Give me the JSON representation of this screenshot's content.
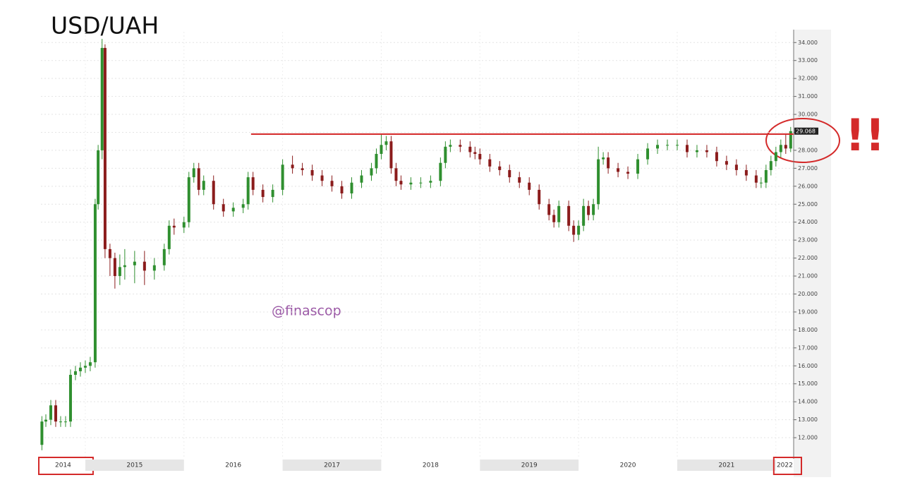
{
  "chart_data": {
    "type": "candlestick",
    "title": "USD/UAH",
    "watermark": "@finascop",
    "annotation": "!!",
    "x": [
      2014.56,
      2014.6,
      2014.65,
      2014.7,
      2014.75,
      2014.8,
      2014.85,
      2014.9,
      2014.95,
      2015.0,
      2015.05,
      2015.1,
      2015.13,
      2015.17,
      2015.2,
      2015.25,
      2015.3,
      2015.35,
      2015.4,
      2015.5,
      2015.6,
      2015.7,
      2015.8,
      2015.85,
      2015.9,
      2016.0,
      2016.05,
      2016.1,
      2016.15,
      2016.2,
      2016.3,
      2016.4,
      2016.5,
      2016.6,
      2016.65,
      2016.7,
      2016.8,
      2016.9,
      2017.0,
      2017.1,
      2017.2,
      2017.3,
      2017.4,
      2017.5,
      2017.6,
      2017.7,
      2017.8,
      2017.9,
      2017.95,
      2018.0,
      2018.05,
      2018.1,
      2018.15,
      2018.2,
      2018.3,
      2018.4,
      2018.5,
      2018.6,
      2018.65,
      2018.7,
      2018.8,
      2018.9,
      2018.95,
      2019.0,
      2019.1,
      2019.2,
      2019.3,
      2019.4,
      2019.5,
      2019.6,
      2019.7,
      2019.75,
      2019.8,
      2019.9,
      2019.95,
      2020.0,
      2020.05,
      2020.1,
      2020.15,
      2020.2,
      2020.25,
      2020.3,
      2020.4,
      2020.5,
      2020.6,
      2020.7,
      2020.8,
      2020.9,
      2021.0,
      2021.1,
      2021.2,
      2021.3,
      2021.4,
      2021.5,
      2021.6,
      2021.7,
      2021.8,
      2021.85,
      2021.9,
      2021.95,
      2022.0,
      2022.05,
      2022.1,
      2022.15
    ],
    "open": [
      11.6,
      12.9,
      13.0,
      13.8,
      12.9,
      12.9,
      12.9,
      15.5,
      15.7,
      15.9,
      16.0,
      16.2,
      25.0,
      28.0,
      33.7,
      22.5,
      22.0,
      21.0,
      21.5,
      21.6,
      21.8,
      21.3,
      21.6,
      22.5,
      23.8,
      23.7,
      24.0,
      26.5,
      27.0,
      25.8,
      26.3,
      25.0,
      24.6,
      24.8,
      25.0,
      26.5,
      25.8,
      25.4,
      25.8,
      27.2,
      27.0,
      26.9,
      26.6,
      26.3,
      26.0,
      25.6,
      26.2,
      26.6,
      27.0,
      27.8,
      28.3,
      28.5,
      27.0,
      26.3,
      26.1,
      26.2,
      26.2,
      26.3,
      27.3,
      28.2,
      28.3,
      28.2,
      27.9,
      27.8,
      27.5,
      27.1,
      26.9,
      26.5,
      26.2,
      25.8,
      25.0,
      24.4,
      24.0,
      24.9,
      23.8,
      23.3,
      23.8,
      24.9,
      24.4,
      25.0,
      27.5,
      27.6,
      27.0,
      26.8,
      26.7,
      27.5,
      28.1,
      28.3,
      28.3,
      28.3,
      27.9,
      28.0,
      27.9,
      27.4,
      27.2,
      26.9,
      26.6,
      26.2,
      26.2,
      26.9,
      27.4,
      27.9,
      28.3,
      28.1
    ],
    "high": [
      13.2,
      13.3,
      14.1,
      14.1,
      13.2,
      13.2,
      15.8,
      16.0,
      16.2,
      16.3,
      16.5,
      25.3,
      28.3,
      34.2,
      33.9,
      22.8,
      22.3,
      22.2,
      22.5,
      22.4,
      22.4,
      22.0,
      22.8,
      24.1,
      24.2,
      24.3,
      26.8,
      27.3,
      27.3,
      26.6,
      26.6,
      25.3,
      25.1,
      25.3,
      26.8,
      26.8,
      26.1,
      26.1,
      27.5,
      27.7,
      27.3,
      27.2,
      26.9,
      26.6,
      26.3,
      26.5,
      26.9,
      27.3,
      28.1,
      28.9,
      28.8,
      28.8,
      27.3,
      26.6,
      26.5,
      26.5,
      26.6,
      27.6,
      28.5,
      28.6,
      28.6,
      28.5,
      28.2,
      28.1,
      27.8,
      27.4,
      27.2,
      26.8,
      26.5,
      26.1,
      25.3,
      24.7,
      25.2,
      25.2,
      24.1,
      24.1,
      25.3,
      25.2,
      25.3,
      28.2,
      27.9,
      27.9,
      27.3,
      27.1,
      27.8,
      28.4,
      28.6,
      28.6,
      28.6,
      28.6,
      28.3,
      28.3,
      28.2,
      27.7,
      27.5,
      27.2,
      26.9,
      26.5,
      27.2,
      27.7,
      28.2,
      28.6,
      28.9,
      29.3
    ],
    "low": [
      11.3,
      12.6,
      12.7,
      12.6,
      12.6,
      12.6,
      12.6,
      15.2,
      15.4,
      15.6,
      15.7,
      15.9,
      24.7,
      27.5,
      22.0,
      21.0,
      20.3,
      20.5,
      20.8,
      20.6,
      20.5,
      20.8,
      21.3,
      22.2,
      23.3,
      23.4,
      23.7,
      26.2,
      25.5,
      25.5,
      24.7,
      24.3,
      24.3,
      24.5,
      24.7,
      25.5,
      25.1,
      25.1,
      25.5,
      26.7,
      26.6,
      26.3,
      26.0,
      25.7,
      25.3,
      25.3,
      25.9,
      26.3,
      26.7,
      27.5,
      28.0,
      26.7,
      26.0,
      25.8,
      25.8,
      25.9,
      25.9,
      26.0,
      27.0,
      27.9,
      27.9,
      27.6,
      27.5,
      27.2,
      26.8,
      26.6,
      26.2,
      25.9,
      25.5,
      24.7,
      24.1,
      23.7,
      23.7,
      23.5,
      22.9,
      23.0,
      23.5,
      24.1,
      24.1,
      24.7,
      27.2,
      26.7,
      26.5,
      26.4,
      26.4,
      27.2,
      27.8,
      28.0,
      28.0,
      27.6,
      27.6,
      27.6,
      27.1,
      26.9,
      26.6,
      26.3,
      25.9,
      25.9,
      25.9,
      26.6,
      27.1,
      27.6,
      27.8,
      27.9
    ],
    "close": [
      12.9,
      13.0,
      13.8,
      12.9,
      12.9,
      12.9,
      15.5,
      15.7,
      15.9,
      16.0,
      16.2,
      25.0,
      28.0,
      33.7,
      22.5,
      22.0,
      21.0,
      21.5,
      21.6,
      21.8,
      21.3,
      21.6,
      22.5,
      23.8,
      23.7,
      24.0,
      26.5,
      27.0,
      25.8,
      26.3,
      25.0,
      24.6,
      24.8,
      25.0,
      26.5,
      25.8,
      25.4,
      25.8,
      27.2,
      27.0,
      26.9,
      26.6,
      26.3,
      26.0,
      25.6,
      26.2,
      26.6,
      27.0,
      27.8,
      28.3,
      28.5,
      27.0,
      26.3,
      26.1,
      26.2,
      26.2,
      26.3,
      27.3,
      28.2,
      28.3,
      28.2,
      27.9,
      27.8,
      27.5,
      27.1,
      26.9,
      26.5,
      26.2,
      25.8,
      25.0,
      24.4,
      24.0,
      24.9,
      23.8,
      23.3,
      23.8,
      24.9,
      24.4,
      25.0,
      27.5,
      27.6,
      27.0,
      26.8,
      26.7,
      27.5,
      28.1,
      28.3,
      28.3,
      28.3,
      27.9,
      28.0,
      27.9,
      27.4,
      27.2,
      26.9,
      26.6,
      26.2,
      26.2,
      26.9,
      27.4,
      27.9,
      28.3,
      28.1,
      29.068
    ],
    "up_color": "#2f8f2f",
    "down_color": "#8b1c1c",
    "xlim": [
      2014.55,
      2022.18
    ],
    "xticks": [
      2014,
      2015,
      2016,
      2017,
      2018,
      2019,
      2020,
      2021,
      2022
    ],
    "highlighted_xticks": [
      2014,
      2022
    ],
    "ylim": [
      11,
      34.6
    ],
    "yticks": [
      {
        "value": 12,
        "label": "12.000"
      },
      {
        "value": 13,
        "label": "13.000"
      },
      {
        "value": 14,
        "label": "14.000"
      },
      {
        "value": 15,
        "label": "15.000"
      },
      {
        "value": 16,
        "label": "16.000"
      },
      {
        "value": 17,
        "label": "17.000"
      },
      {
        "value": 18,
        "label": "18.000"
      },
      {
        "value": 19,
        "label": "19.000"
      },
      {
        "value": 20,
        "label": "20.000"
      },
      {
        "value": 21,
        "label": "21.000"
      },
      {
        "value": 22,
        "label": "22.000"
      },
      {
        "value": 23,
        "label": "23.000"
      },
      {
        "value": 24,
        "label": "24.000"
      },
      {
        "value": 25,
        "label": "25.000"
      },
      {
        "value": 26,
        "label": "26.000"
      },
      {
        "value": 27,
        "label": "27.000"
      },
      {
        "value": 28,
        "label": "28.000"
      },
      {
        "value": 29,
        "label": "29.000"
      },
      {
        "value": 30,
        "label": "30.000"
      },
      {
        "value": 31,
        "label": "31.000"
      },
      {
        "value": 32,
        "label": "32.000"
      },
      {
        "value": 33,
        "label": "33.000"
      },
      {
        "value": 34,
        "label": "34.000"
      }
    ],
    "reference_line": 28.9,
    "reference_line_start": 2016.68,
    "reference_color": "#d42a2a",
    "grid": true
  }
}
